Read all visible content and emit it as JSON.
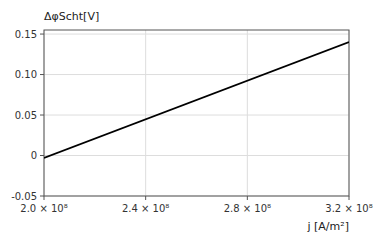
{
  "chart_data": {
    "type": "line",
    "x": [
      200000000,
      320000000
    ],
    "values": [
      -0.003,
      0.14
    ],
    "color": "#000000",
    "xlim": [
      200000000,
      320000000
    ],
    "ylim": [
      -0.05,
      0.155
    ],
    "xticks": [
      {
        "value": 200000000,
        "label": "2.0 × 10⁸"
      },
      {
        "value": 240000000,
        "label": "2.4 × 10⁸"
      },
      {
        "value": 280000000,
        "label": "2.8 × 10⁸"
      },
      {
        "value": 320000000,
        "label": "3.2 × 10⁸"
      }
    ],
    "yticks": [
      -0.05,
      0,
      0.05,
      {
        "value": 0.1,
        "label": "0.10"
      },
      0.15
    ],
    "xlabel": "j [A/m²]",
    "ylabel": "ΔφScht[V]",
    "grid": true
  }
}
